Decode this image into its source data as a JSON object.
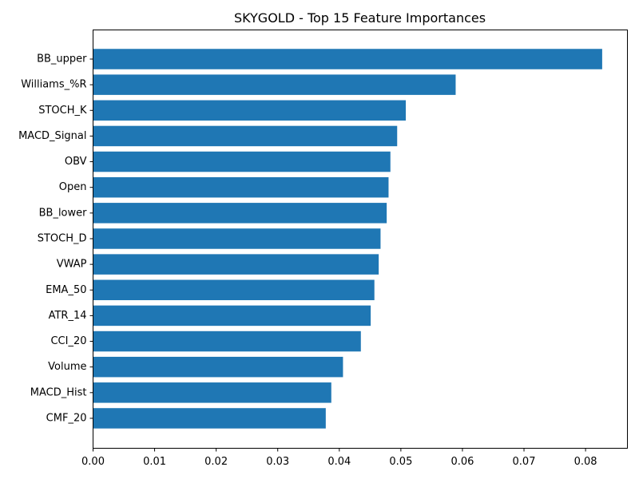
{
  "chart_data": {
    "type": "bar",
    "orientation": "horizontal",
    "title": "SKYGOLD - Top 15 Feature Importances",
    "xlabel": "",
    "ylabel": "",
    "categories": [
      "BB_upper",
      "Williams_%R",
      "STOCH_K",
      "MACD_Signal",
      "OBV",
      "Open",
      "BB_lower",
      "STOCH_D",
      "VWAP",
      "EMA_50",
      "ATR_14",
      "CCI_20",
      "Volume",
      "MACD_Hist",
      "CMF_20"
    ],
    "values": [
      0.0827,
      0.0589,
      0.0508,
      0.0494,
      0.0483,
      0.048,
      0.0477,
      0.0467,
      0.0464,
      0.0457,
      0.0451,
      0.0435,
      0.0406,
      0.0387,
      0.0378
    ],
    "xlim": [
      0,
      0.0868
    ],
    "xticks": [
      "0.00",
      "0.01",
      "0.02",
      "0.03",
      "0.04",
      "0.05",
      "0.06",
      "0.07",
      "0.08"
    ],
    "bar_color": "#1f77b4",
    "grid": false,
    "legend": "none"
  }
}
